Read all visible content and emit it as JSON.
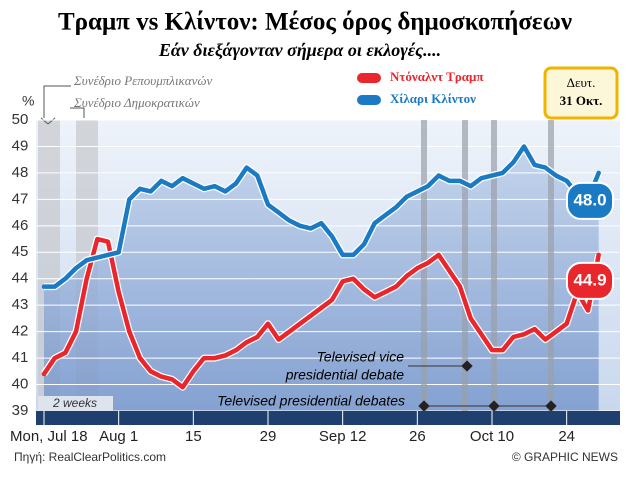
{
  "chart_data": {
    "type": "line",
    "title": "Τραμπ vs Κλίντον: Μέσος όρος δημοσκοπήσεων",
    "subtitle": "Εάν διεξάγονταν σήμερα οι εκλογές....",
    "y_unit": "%",
    "date_box": [
      "Δευτ.",
      "31 Οκτ."
    ],
    "annotations": [
      "Συνέδριο Ρεπουμπλικανών",
      "Συνέδριο Δημοκρατικών",
      "Televised vice presidential debate",
      "Televised presidential debates",
      "2 weeks"
    ],
    "source": "Πηγή: RealClearPolitics.com",
    "credit": "© GRAPHIC NEWS",
    "x": [
      0,
      2,
      4,
      6,
      8,
      10,
      12,
      14,
      16,
      18,
      20,
      22,
      24,
      26,
      28,
      30,
      32,
      34,
      36,
      38,
      40,
      42,
      44,
      46,
      48,
      50,
      52,
      54,
      56,
      58,
      60,
      62,
      64,
      66,
      68,
      70,
      72,
      74,
      76,
      78,
      80,
      82,
      84,
      86,
      88,
      90,
      92,
      94,
      96,
      98,
      100,
      102,
      104
    ],
    "xlim": [
      -1.5,
      108
    ],
    "xticks": [
      {
        "value": 0,
        "label": "Mon, Jul 18"
      },
      {
        "value": 14,
        "label": "Aug 1"
      },
      {
        "value": 28,
        "label": "15"
      },
      {
        "value": 42,
        "label": "29"
      },
      {
        "value": 56,
        "label": "Sep 12"
      },
      {
        "value": 70,
        "label": "26"
      },
      {
        "value": 84,
        "label": "Oct 10"
      },
      {
        "value": 98,
        "label": "24"
      }
    ],
    "ylim": [
      39,
      50
    ],
    "yticks": [
      39,
      40,
      41,
      42,
      43,
      44,
      45,
      46,
      47,
      48,
      49,
      50
    ],
    "grid": true,
    "series": [
      {
        "name": "Ντόναλντ Τραμπ",
        "color": "#e8262b",
        "values": [
          40.4,
          41,
          41.2,
          42,
          44,
          45.5,
          45.4,
          43.5,
          42,
          41,
          40.5,
          40.3,
          40.2,
          39.9,
          40.5,
          41,
          41,
          41.1,
          41.3,
          41.6,
          41.8,
          42.3,
          41.7,
          42,
          42.3,
          42.6,
          42.9,
          43.2,
          43.9,
          44,
          43.6,
          43.3,
          43.5,
          43.7,
          44.1,
          44.4,
          44.6,
          44.9,
          44.3,
          43.7,
          42.5,
          41.9,
          41.3,
          41.3,
          41.8,
          41.9,
          42.1,
          41.7,
          42,
          42.3,
          43.5,
          42.8,
          44.9
        ],
        "value_labels": [
          null,
          null,
          null,
          null,
          null,
          null,
          null,
          null,
          null,
          null,
          null,
          null,
          null,
          null,
          null,
          null,
          null,
          null,
          null,
          null,
          null,
          null,
          null,
          null,
          null,
          null,
          null,
          null,
          null,
          null,
          null,
          null,
          null,
          null,
          null,
          null,
          null,
          null,
          null,
          null,
          null,
          null,
          null,
          null,
          null,
          null,
          null,
          null,
          null,
          null,
          null,
          null,
          "44.9"
        ]
      },
      {
        "name": "Χίλαρι Κλίντον",
        "color": "#1a7ac4",
        "values": [
          43.7,
          43.7,
          44,
          44.4,
          44.7,
          44.8,
          44.9,
          45,
          47,
          47.4,
          47.3,
          47.7,
          47.5,
          47.8,
          47.6,
          47.4,
          47.5,
          47.3,
          47.6,
          48.2,
          47.9,
          46.8,
          46.5,
          46.2,
          46,
          45.9,
          46.1,
          45.6,
          44.9,
          44.9,
          45.3,
          46.1,
          46.4,
          46.7,
          47.1,
          47.3,
          47.5,
          47.9,
          47.7,
          47.7,
          47.5,
          47.8,
          47.9,
          48,
          48.4,
          49,
          48.3,
          48.2,
          47.9,
          47.7,
          47.2,
          47,
          48
        ],
        "value_labels": [
          null,
          null,
          null,
          null,
          null,
          null,
          null,
          null,
          null,
          null,
          null,
          null,
          null,
          null,
          null,
          null,
          null,
          null,
          null,
          null,
          null,
          null,
          null,
          null,
          null,
          null,
          null,
          null,
          null,
          null,
          null,
          null,
          null,
          null,
          null,
          null,
          null,
          null,
          null,
          null,
          null,
          null,
          null,
          null,
          null,
          null,
          null,
          null,
          null,
          null,
          null,
          null,
          "48.0"
        ]
      }
    ]
  }
}
